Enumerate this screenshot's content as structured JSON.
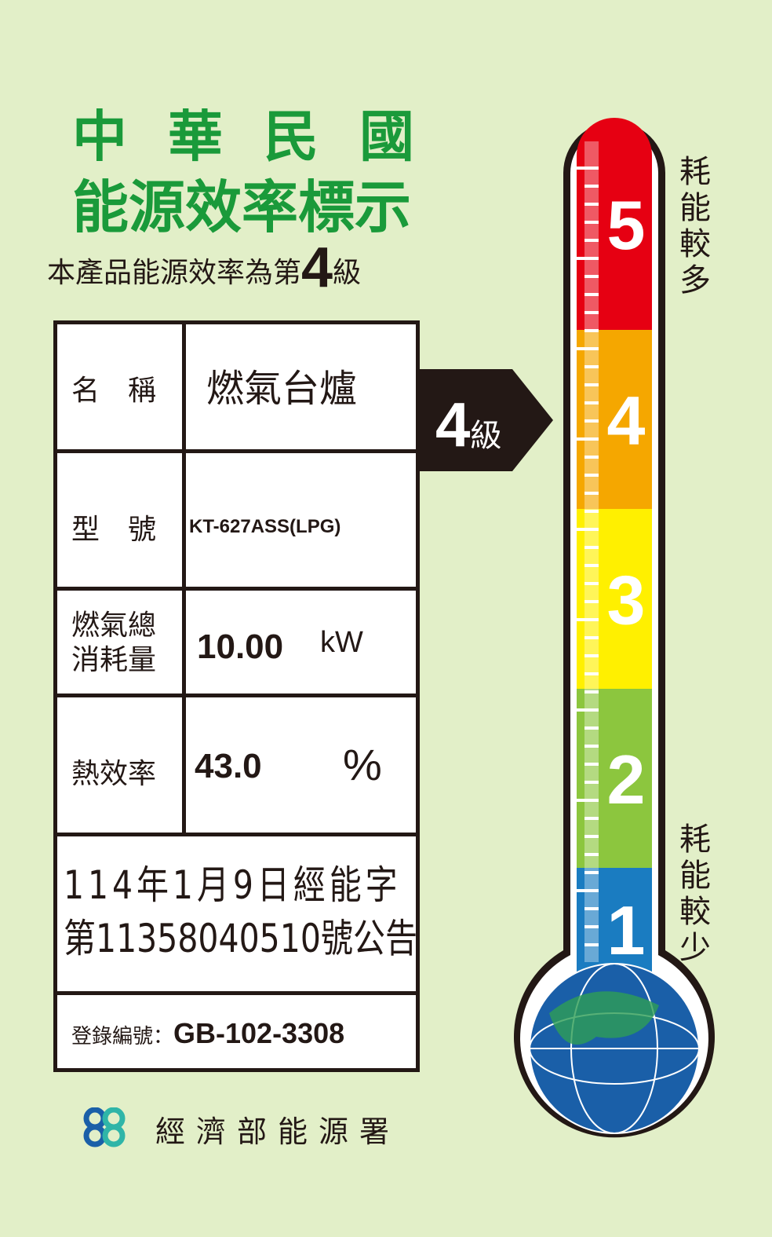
{
  "header": {
    "line1": "中華民國",
    "line2": "能源效率標示",
    "grade_text": "本產品能源效率為第",
    "grade_value": "4",
    "grade_suffix": "級"
  },
  "table": {
    "name_label": "名　稱",
    "name_value": "燃氣台爐",
    "model_label": "型　號",
    "model_value": "KT-627ASS(LPG)",
    "consumption_label_1": "燃氣總",
    "consumption_label_2": "消耗量",
    "consumption_value": "10.00",
    "consumption_unit": "kW",
    "efficiency_label": "熱效率",
    "efficiency_value": "43.0",
    "efficiency_unit": "%",
    "notice_line1": "114年1月9日經能字",
    "notice_line2": "第11358040510號公告",
    "registration_label": "登錄編號：",
    "registration_value": "GB-102-3308"
  },
  "indicator": {
    "value": "4",
    "suffix": "級"
  },
  "thermometer": {
    "levels": [
      "5",
      "4",
      "3",
      "2",
      "1"
    ],
    "colors": [
      "#e60012",
      "#f5a700",
      "#fff000",
      "#8cc63e",
      "#1a7cc1"
    ],
    "top_label": "耗能較多",
    "bottom_label": "耗能較少",
    "current_level": 4
  },
  "footer": {
    "agency": "經濟部能源署"
  }
}
